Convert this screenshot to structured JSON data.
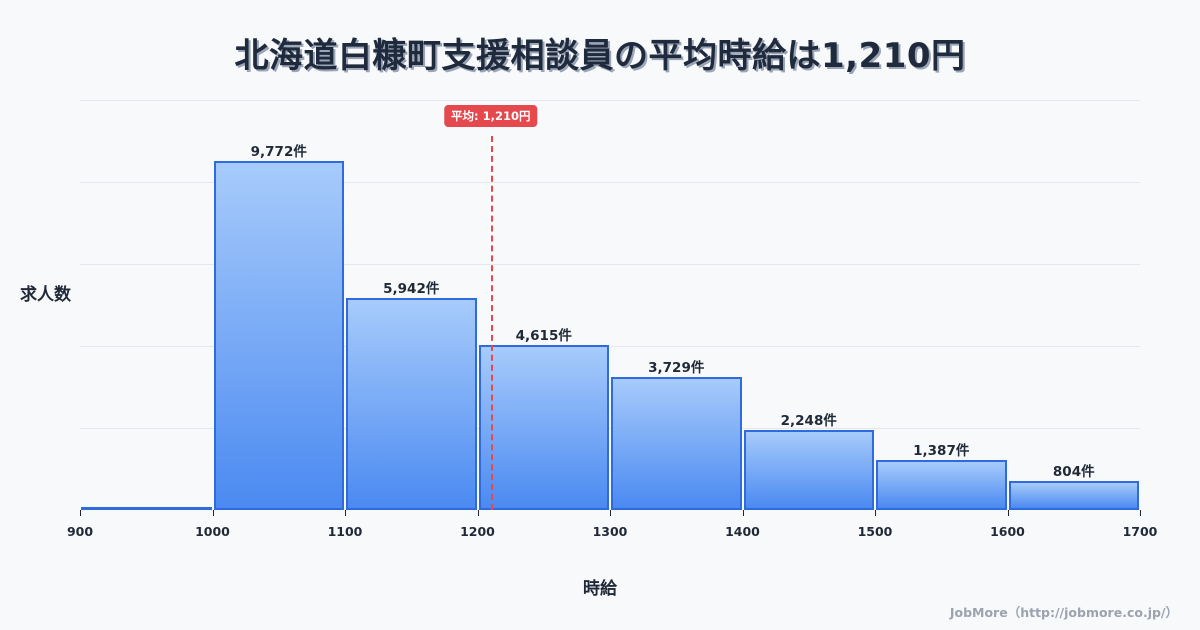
{
  "title": "北海道白糠町支援相談員の平均時給は1,210円",
  "credit": "JobMore（http://jobmore.co.jp/）",
  "colors": {
    "bar_fill_top": "#a7cbfb",
    "bar_fill_bottom": "#4b8af1",
    "bar_border": "#2f6bde",
    "mean_line": "#e5484d",
    "gridline": "#e3e7ee",
    "background": "#f8f9fb"
  },
  "chart_data": {
    "type": "bar",
    "title": "北海道白糠町支援相談員の平均時給は1,210円",
    "xlabel": "時給",
    "ylabel": "求人数",
    "bin_edges": [
      900,
      1000,
      1100,
      1200,
      1300,
      1400,
      1500,
      1600,
      1700
    ],
    "categories": [
      "900-1000",
      "1000-1100",
      "1100-1200",
      "1200-1300",
      "1300-1400",
      "1400-1500",
      "1500-1600",
      "1600-1700"
    ],
    "values": [
      0,
      9772,
      5942,
      4615,
      3729,
      2248,
      1387,
      804
    ],
    "value_labels": [
      "",
      "9,772件",
      "5,942件",
      "4,615件",
      "3,729件",
      "2,248件",
      "1,387件",
      "804件"
    ],
    "x_tick_labels": [
      "900",
      "1000",
      "1100",
      "1200",
      "1300",
      "1400",
      "1500",
      "1600",
      "1700"
    ],
    "xlim": [
      900,
      1700
    ],
    "y_ticks_labeled": false,
    "grid": true,
    "annotations": [
      {
        "type": "vline",
        "x": 1210,
        "label": "平均: 1,210円",
        "style": "dashed",
        "color": "#e5484d"
      }
    ]
  }
}
